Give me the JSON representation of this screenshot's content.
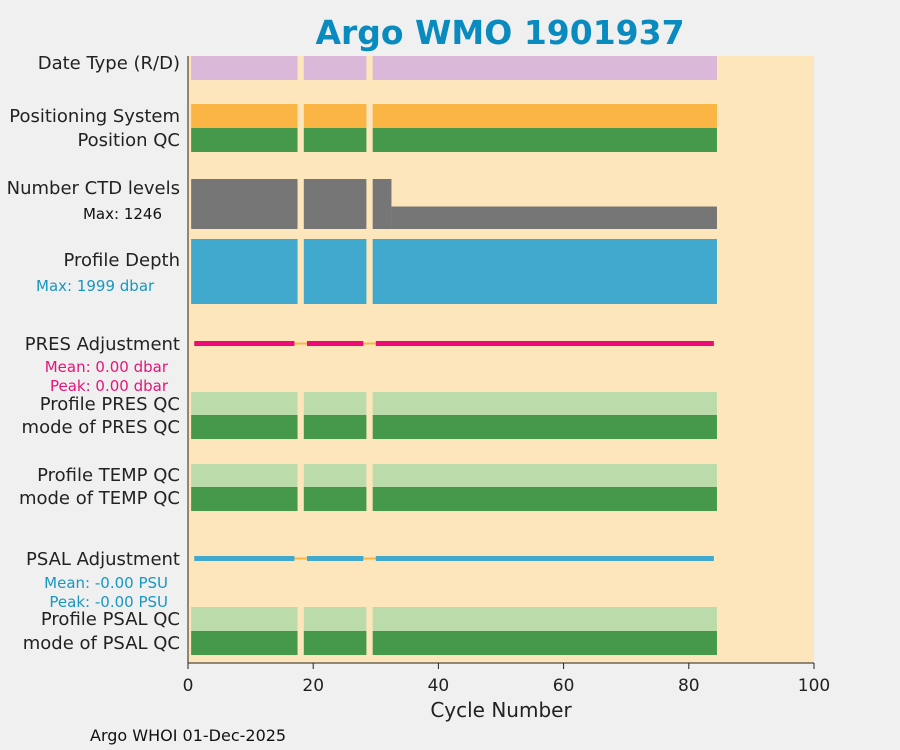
{
  "chart_data": {
    "type": "bar",
    "title": "Argo WMO 1901937",
    "xlabel": "Cycle Number",
    "ylabel": "",
    "xlim": [
      0,
      100
    ],
    "x_ticks": [
      "0",
      "20",
      "40",
      "60",
      "80",
      "100"
    ],
    "cycles": {
      "segments": [
        [
          1,
          17
        ],
        [
          19,
          28
        ],
        [
          30,
          84
        ]
      ],
      "missing": [
        18,
        29
      ]
    },
    "rows": [
      {
        "label": "Date Type (R/D)",
        "color": "#d9b8d9"
      },
      {
        "label": "Positioning System",
        "color": "#fbb545"
      },
      {
        "label": "Position QC",
        "color": "#46994a"
      },
      {
        "label": "Number CTD levels",
        "note": "Max: 1246",
        "note_color": "#111111",
        "color": "#767676",
        "values_fraction_of_max": [
          {
            "cycles": [
              1,
              17
            ],
            "value": 1.0
          },
          {
            "cycles": [
              19,
              28
            ],
            "value": 1.0
          },
          {
            "cycles": [
              30,
              32
            ],
            "value": 1.0
          },
          {
            "cycles": [
              33,
              84
            ],
            "value": 0.45
          }
        ]
      },
      {
        "label": "Profile Depth",
        "note": "Max: 1999 dbar",
        "note_color": "#1797c1",
        "color": "#41a9ce"
      },
      {
        "label": "PRES Adjustment",
        "notes": [
          "Mean: 0.00 dbar",
          "Peak: 0.00 dbar"
        ],
        "note_color": "#e6147a",
        "color": "#ee0b78",
        "mean": 0.0,
        "peak": 0.0
      },
      {
        "label": "Profile PRES QC",
        "color": "#bcdbab"
      },
      {
        "label": "mode of PRES QC",
        "color": "#46994a"
      },
      {
        "label": "Profile TEMP QC",
        "color": "#bcdbab"
      },
      {
        "label": "mode of TEMP QC",
        "color": "#46994a"
      },
      {
        "label": "PSAL Adjustment",
        "notes": [
          "Mean: -0.00 PSU",
          "Peak: -0.00 PSU"
        ],
        "note_color": "#1797c1",
        "color": "#41a9ce",
        "mean": -0.0,
        "peak": -0.0
      },
      {
        "label": "Profile PSAL QC",
        "color": "#bcdbab"
      },
      {
        "label": "mode of PSAL QC",
        "color": "#46994a"
      }
    ],
    "colors": {
      "background": "#fde6bc",
      "gap": "#fbb545"
    },
    "footer": "Argo WHOI 01-Dec-2025"
  }
}
